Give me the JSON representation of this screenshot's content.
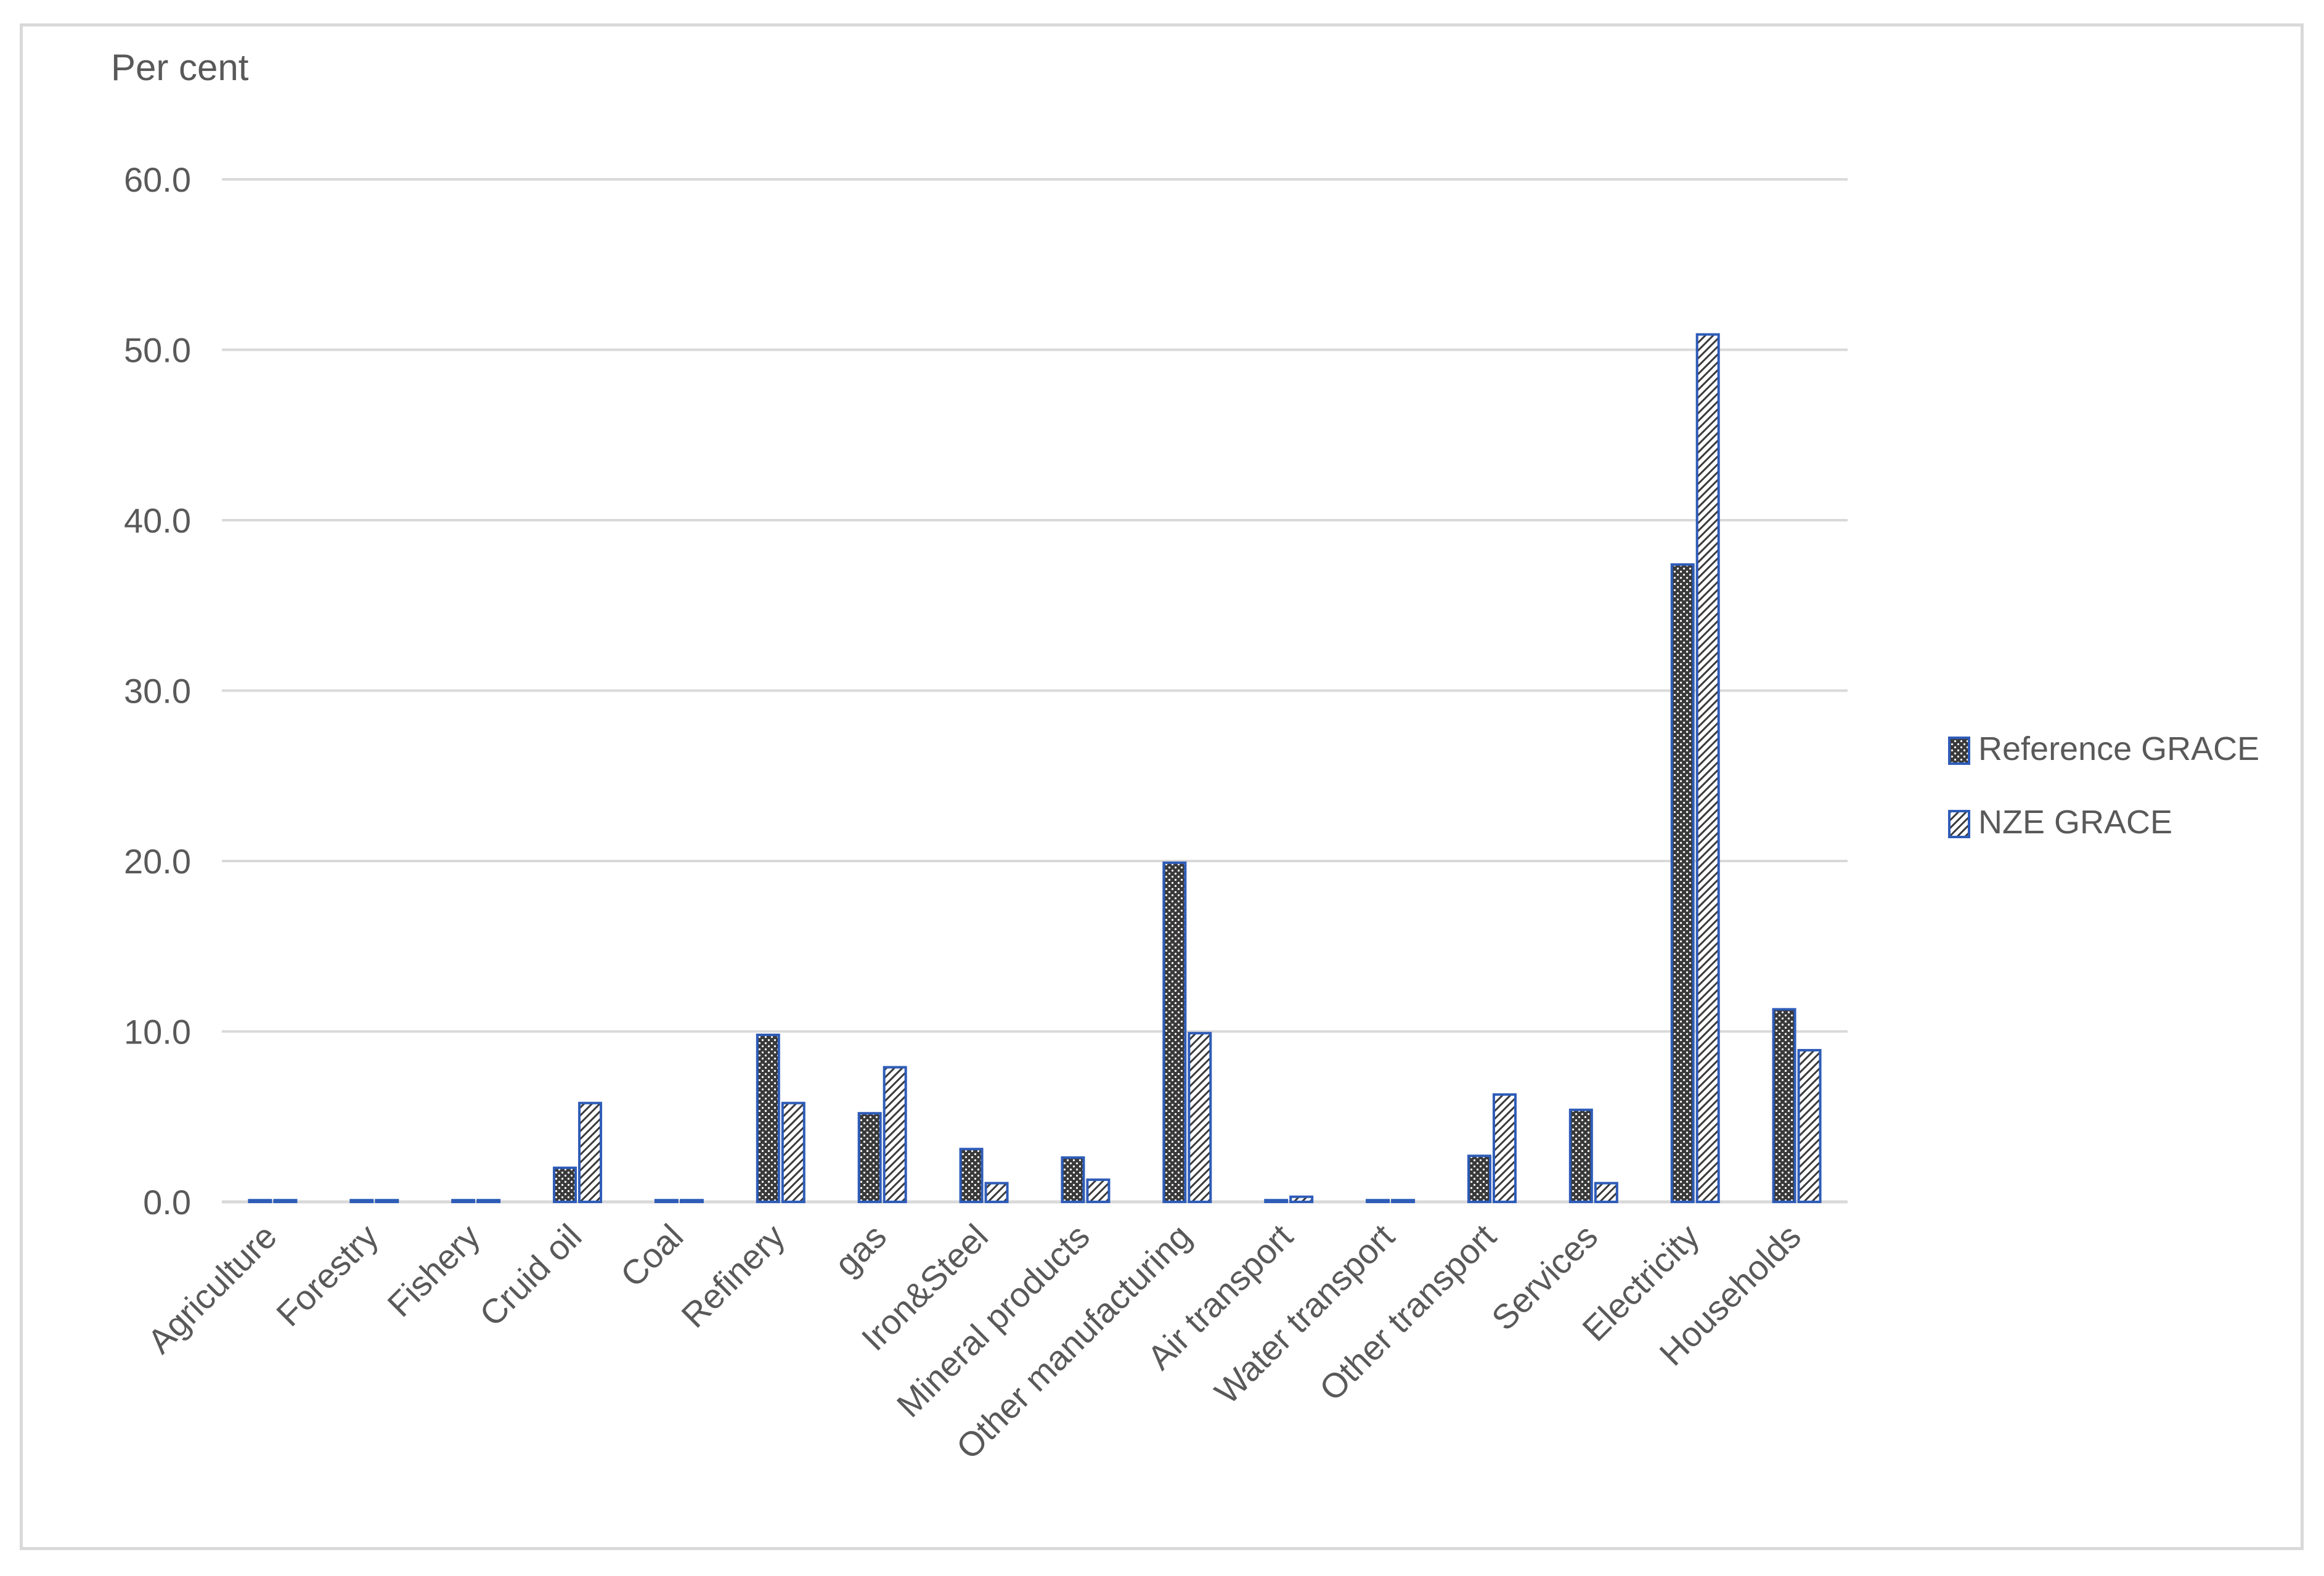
{
  "chart_data": {
    "type": "bar",
    "ylabel": "Per cent",
    "ylim": [
      0,
      60
    ],
    "yticks": [
      0,
      10,
      20,
      30,
      40,
      50,
      60
    ],
    "ytick_labels": [
      "0.0",
      "10.0",
      "20.0",
      "30.0",
      "40.0",
      "50.0",
      "60.0"
    ],
    "grid": true,
    "legend_position": "right",
    "categories": [
      "Agriculture",
      "Forestry",
      "Fishery",
      "Cruid oil",
      "Coal",
      "Refinery",
      "gas",
      "Iron&Steel",
      "Mineral products",
      "Other manufacturing",
      "Air transport",
      "Water transport",
      "Other transport",
      "Services",
      "Electricity",
      "Households"
    ],
    "series": [
      {
        "name": "Reference GRACE",
        "pattern": "dark-dots",
        "values": [
          0.1,
          0.1,
          0.1,
          2.0,
          0.1,
          9.8,
          5.2,
          3.1,
          2.6,
          19.9,
          0.1,
          0.1,
          2.7,
          5.4,
          37.4,
          11.3
        ]
      },
      {
        "name": "NZE GRACE",
        "pattern": "diagonal-hatch",
        "values": [
          0.1,
          0.1,
          0.1,
          5.8,
          0.1,
          5.8,
          7.9,
          1.1,
          1.3,
          9.9,
          0.3,
          0.1,
          6.3,
          1.1,
          50.9,
          8.9
        ]
      }
    ]
  },
  "colors": {
    "bar_outline": "#2e5cb8",
    "reference_fill": "#3a3a3a",
    "nze_fill": "#ffffff",
    "gridline": "#d9d9d9",
    "text": "#595959",
    "frame": "#d9d9d9"
  }
}
